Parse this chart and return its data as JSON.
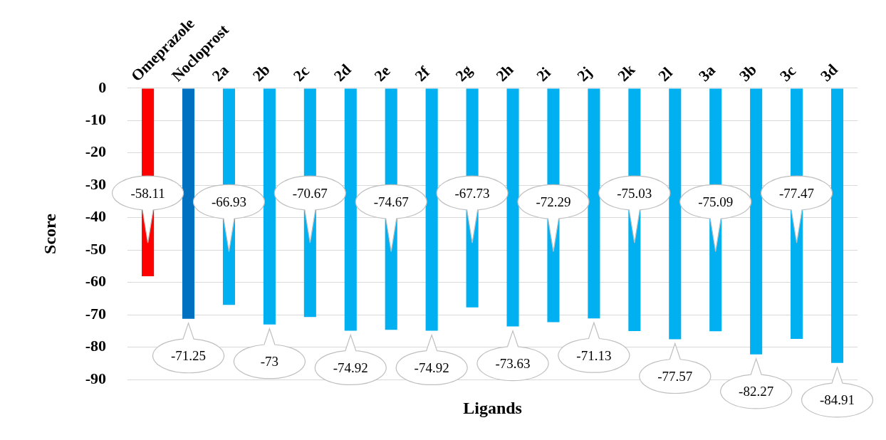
{
  "chart_data": {
    "type": "bar",
    "xlabel": "Ligands",
    "ylabel": "Score",
    "categories": [
      "Omeprazole",
      "Nocloprost",
      "2a",
      "2b",
      "2c",
      "2d",
      "2e",
      "2f",
      "2g",
      "2h",
      "2i",
      "2j",
      "2k",
      "2l",
      "3a",
      "3b",
      "3c",
      "3d"
    ],
    "values": [
      -58.11,
      -71.25,
      -66.93,
      -73,
      -70.67,
      -74.92,
      -74.67,
      -74.92,
      -67.73,
      -73.63,
      -72.29,
      -71.13,
      -75.03,
      -77.57,
      -75.09,
      -82.27,
      -77.47,
      -84.91
    ],
    "colors": [
      "#ff0000",
      "#0070c0",
      "#00b0f0",
      "#00b0f0",
      "#00b0f0",
      "#00b0f0",
      "#00b0f0",
      "#00b0f0",
      "#00b0f0",
      "#00b0f0",
      "#00b0f0",
      "#00b0f0",
      "#00b0f0",
      "#00b0f0",
      "#00b0f0",
      "#00b0f0",
      "#00b0f0",
      "#00b0f0"
    ],
    "ylim": [
      -90,
      0
    ],
    "yticks": [
      0,
      -10,
      -20,
      -30,
      -40,
      -50,
      -60,
      -70,
      -80,
      -90
    ],
    "grid": "y",
    "legend": false,
    "data_labels": true
  }
}
